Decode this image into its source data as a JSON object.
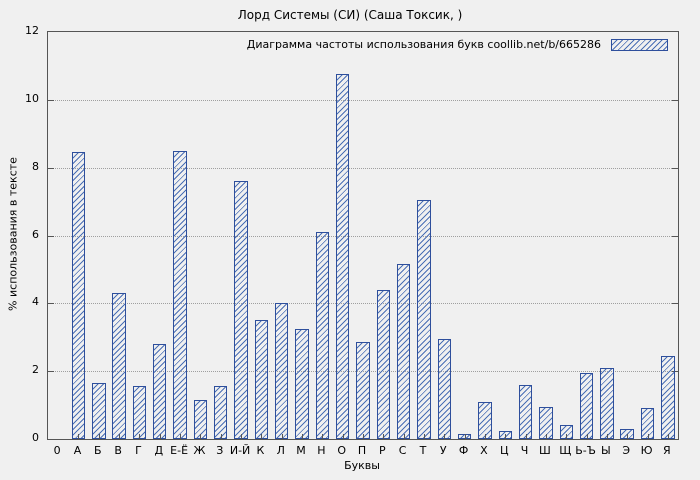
{
  "title": "Лорд Системы (СИ) (Саша Токсик,  )",
  "legend_label": "Диаграмма частоты использования букв coollib.net/b/665286",
  "colors": {
    "bar_border": "#2e4f9c",
    "bar_hatch": "#4a6fb5",
    "grid": "#9f9f9f",
    "background": "#f0f0f0"
  },
  "chart_data": {
    "type": "bar",
    "title": "Лорд Системы (СИ) (Саша Токсик,  )",
    "legend": "Диаграмма частоты использования букв coollib.net/b/665286",
    "xlabel": "Буквы",
    "ylabel": "% использования в тексте",
    "origin_tick": "0",
    "ylim": [
      0,
      12
    ],
    "yticks": [
      0,
      2,
      4,
      6,
      8,
      10,
      12
    ],
    "grid": "horizontal-dotted",
    "legend_position": "top-right",
    "categories": [
      "А",
      "Б",
      "В",
      "Г",
      "Д",
      "Е-Ё",
      "Ж",
      "З",
      "И-Й",
      "К",
      "Л",
      "М",
      "Н",
      "О",
      "П",
      "Р",
      "С",
      "Т",
      "У",
      "Ф",
      "Х",
      "Ц",
      "Ч",
      "Ш",
      "Щ",
      "Ь-Ъ",
      "Ы",
      "Э",
      "Ю",
      "Я"
    ],
    "values": [
      8.45,
      1.65,
      4.3,
      1.55,
      2.8,
      8.5,
      1.15,
      1.55,
      7.6,
      3.5,
      4.0,
      3.25,
      6.1,
      10.75,
      2.85,
      4.4,
      5.15,
      7.05,
      2.95,
      0.15,
      1.1,
      0.25,
      1.6,
      0.95,
      0.4,
      1.95,
      2.1,
      0.3,
      0.9,
      2.45
    ]
  }
}
